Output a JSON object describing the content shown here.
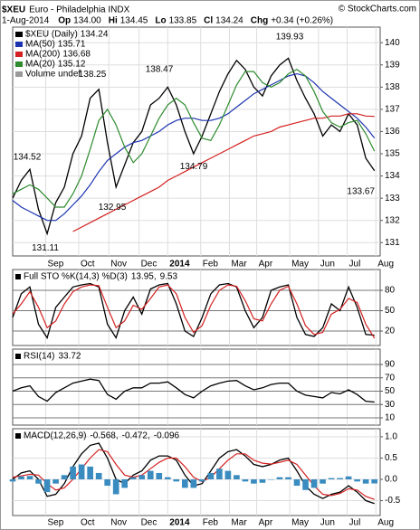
{
  "header": {
    "symbol": "$XEU",
    "name": "Euro - Philadelphia INDX",
    "watermark": "© StockCharts.com",
    "date": "1-Aug-2014",
    "fields": [
      {
        "label": "Op",
        "value": "134.00"
      },
      {
        "label": "Hi",
        "value": "134.45"
      },
      {
        "label": "Lo",
        "value": "133.85"
      },
      {
        "label": "Cl",
        "value": "134.24"
      },
      {
        "label": "Chg",
        "value": "+0.34 (+0.26%)"
      }
    ]
  },
  "chart_data": [
    {
      "type": "line",
      "x": [
        0,
        6,
        12,
        18,
        24,
        30,
        36,
        42,
        48,
        54,
        60,
        66,
        72,
        78,
        84,
        90,
        96,
        102,
        108,
        114,
        120,
        126,
        132,
        138,
        144,
        150,
        156,
        162,
        168,
        174,
        180,
        186,
        192,
        198,
        204,
        210,
        216,
        222,
        228,
        234,
        240,
        246,
        252
      ],
      "xlim": [
        0,
        256
      ],
      "xticks": [
        {
          "value": 23,
          "label": "Sep"
        },
        {
          "value": 46,
          "label": "Oct"
        },
        {
          "value": 67,
          "label": "Nov"
        },
        {
          "value": 88,
          "label": "Dec"
        },
        {
          "value": 108,
          "label": "2014"
        },
        {
          "value": 131,
          "label": "Feb"
        },
        {
          "value": 151,
          "label": "Mar"
        },
        {
          "value": 170,
          "label": "Apr"
        },
        {
          "value": 193,
          "label": "May"
        },
        {
          "value": 213,
          "label": "Jun"
        },
        {
          "value": 233,
          "label": "Jul"
        },
        {
          "value": 253,
          "label": "Aug"
        }
      ],
      "ylim": [
        130.4,
        140.7
      ],
      "yticks": [
        131,
        132,
        133,
        134,
        135,
        136,
        137,
        138,
        139,
        140
      ],
      "grid": true,
      "series": [
        {
          "name": "$XEU (Daily)",
          "color": "#000000",
          "values": [
            133.0,
            133.8,
            134.3,
            132.5,
            131.4,
            132.8,
            133.5,
            135.0,
            135.8,
            137.5,
            137.9,
            135.5,
            133.5,
            134.5,
            135.5,
            136.0,
            137.2,
            137.5,
            138.0,
            137.2,
            136.0,
            135.0,
            135.8,
            136.8,
            137.8,
            138.6,
            139.2,
            138.8,
            138.0,
            137.6,
            138.5,
            139.0,
            139.3,
            138.3,
            137.5,
            136.8,
            135.8,
            136.3,
            136.0,
            136.8,
            136.3,
            134.8,
            134.24
          ]
        },
        {
          "name": "MA(50)",
          "color": "#1c34b0",
          "values": [
            132.9,
            132.6,
            132.4,
            132.2,
            132.0,
            132.0,
            132.3,
            132.7,
            133.1,
            133.6,
            134.2,
            134.7,
            135.0,
            135.3,
            135.5,
            135.6,
            135.8,
            136.0,
            136.3,
            136.5,
            136.6,
            136.6,
            136.5,
            136.5,
            136.6,
            136.8,
            137.1,
            137.4,
            137.7,
            137.9,
            138.1,
            138.3,
            138.5,
            138.6,
            138.5,
            138.2,
            137.8,
            137.5,
            137.2,
            136.9,
            136.6,
            136.2,
            135.71
          ]
        },
        {
          "name": "MA(200)",
          "color": "#d42020",
          "values": [
            null,
            null,
            null,
            null,
            null,
            null,
            null,
            131.5,
            131.7,
            131.9,
            132.1,
            132.3,
            132.5,
            132.7,
            132.9,
            133.1,
            133.3,
            133.5,
            133.8,
            134.0,
            134.2,
            134.4,
            134.6,
            134.8,
            135.0,
            135.2,
            135.4,
            135.6,
            135.8,
            135.9,
            136.0,
            136.2,
            136.3,
            136.4,
            136.5,
            136.6,
            136.6,
            136.7,
            136.7,
            136.8,
            136.8,
            136.7,
            136.68
          ]
        },
        {
          "name": "MA(20)",
          "color": "#2e8b2e",
          "values": [
            133.2,
            133.4,
            133.6,
            133.4,
            133.0,
            132.6,
            132.6,
            133.2,
            134.0,
            135.2,
            136.5,
            137.0,
            136.3,
            135.3,
            134.6,
            135.0,
            135.8,
            136.6,
            137.2,
            137.5,
            137.2,
            136.4,
            135.7,
            135.6,
            136.3,
            137.2,
            138.1,
            138.7,
            138.7,
            138.2,
            138.0,
            138.2,
            138.6,
            138.8,
            138.5,
            137.8,
            136.9,
            136.4,
            136.2,
            136.4,
            136.5,
            135.9,
            135.12
          ]
        }
      ],
      "volume_label": "Volume undef",
      "annotations": [
        134.52,
        131.11,
        138.25,
        132.95,
        138.47,
        134.79,
        139.93,
        133.67
      ]
    },
    {
      "type": "line",
      "legend": "Full STO %K(14,3) %D(3)",
      "separator": ",",
      "ylim": [
        -1.3,
        110.7
      ],
      "yticks": [
        20,
        50,
        80
      ],
      "grid": true,
      "series": [
        {
          "color": "#000000",
          "values": [
            40,
            75,
            85,
            30,
            10,
            55,
            70,
            85,
            88,
            90,
            85,
            30,
            10,
            50,
            70,
            45,
            82,
            88,
            90,
            60,
            20,
            12,
            40,
            75,
            88,
            90,
            85,
            50,
            25,
            40,
            80,
            85,
            88,
            40,
            15,
            12,
            25,
            60,
            50,
            85,
            55,
            15,
            13.95
          ]
        },
        {
          "color": "#d42020",
          "values": [
            45,
            60,
            78,
            55,
            25,
            35,
            60,
            78,
            85,
            88,
            87,
            55,
            25,
            35,
            58,
            52,
            68,
            85,
            88,
            75,
            40,
            18,
            28,
            58,
            80,
            88,
            86,
            65,
            38,
            35,
            60,
            80,
            86,
            60,
            28,
            15,
            18,
            45,
            52,
            68,
            62,
            30,
            9.53
          ]
        }
      ]
    },
    {
      "type": "line",
      "legend": "RSI(14)",
      "ylim": [
        -0.8,
        113
      ],
      "yticks": [
        10,
        30,
        50,
        70,
        90
      ],
      "grid": true,
      "series": [
        {
          "color": "#000000",
          "values": [
            50,
            55,
            58,
            42,
            35,
            48,
            55,
            62,
            65,
            68,
            66,
            45,
            38,
            50,
            55,
            55,
            62,
            62,
            64,
            55,
            45,
            40,
            50,
            58,
            62,
            65,
            66,
            58,
            52,
            55,
            60,
            62,
            62,
            50,
            44,
            42,
            40,
            48,
            46,
            52,
            45,
            35,
            33.72
          ]
        }
      ]
    },
    {
      "type": "line",
      "legend": "MACD(12,26,9)",
      "separator": ",",
      "ylim": [
        -0.85,
        1.19
      ],
      "yticks": [
        {
          "value": 1.0,
          "label": "1.0"
        },
        {
          "value": 0.5,
          "label": "0.5"
        },
        {
          "value": 0,
          "label": "0.0"
        },
        {
          "value": -0.5,
          "label": "-0.5"
        }
      ],
      "grid": true,
      "series": [
        {
          "color": "#000000",
          "values": [
            0.0,
            0.15,
            0.2,
            0.0,
            -0.4,
            -0.35,
            -0.1,
            0.3,
            0.6,
            0.8,
            0.85,
            0.5,
            0.0,
            -0.1,
            0.1,
            0.2,
            0.45,
            0.55,
            0.55,
            0.45,
            0.1,
            -0.15,
            -0.1,
            0.2,
            0.5,
            0.65,
            0.7,
            0.55,
            0.35,
            0.3,
            0.35,
            0.45,
            0.5,
            0.2,
            -0.15,
            -0.35,
            -0.45,
            -0.35,
            -0.3,
            -0.15,
            -0.3,
            -0.5,
            -0.568
          ]
        },
        {
          "color": "#d42020",
          "values": [
            0.05,
            0.08,
            0.12,
            0.1,
            -0.1,
            -0.25,
            -0.2,
            0.0,
            0.25,
            0.5,
            0.7,
            0.65,
            0.35,
            0.1,
            0.05,
            0.1,
            0.25,
            0.4,
            0.5,
            0.5,
            0.3,
            0.05,
            -0.05,
            0.05,
            0.25,
            0.45,
            0.6,
            0.6,
            0.45,
            0.38,
            0.36,
            0.4,
            0.45,
            0.35,
            0.1,
            -0.15,
            -0.35,
            -0.38,
            -0.33,
            -0.22,
            -0.25,
            -0.4,
            -0.472
          ]
        },
        {
          "type": "bar",
          "color": "#3a8cc0",
          "values": [
            -0.05,
            0.07,
            0.08,
            -0.1,
            -0.3,
            -0.1,
            0.1,
            0.3,
            0.35,
            0.3,
            0.15,
            -0.15,
            -0.35,
            -0.2,
            0.05,
            0.1,
            0.2,
            0.15,
            0.05,
            -0.05,
            -0.2,
            -0.2,
            -0.05,
            0.15,
            0.25,
            0.2,
            0.1,
            -0.05,
            -0.1,
            -0.08,
            -0.01,
            0.05,
            0.05,
            -0.15,
            -0.25,
            -0.2,
            -0.1,
            0.03,
            0.03,
            0.07,
            -0.05,
            -0.1,
            -0.096
          ]
        }
      ]
    }
  ]
}
